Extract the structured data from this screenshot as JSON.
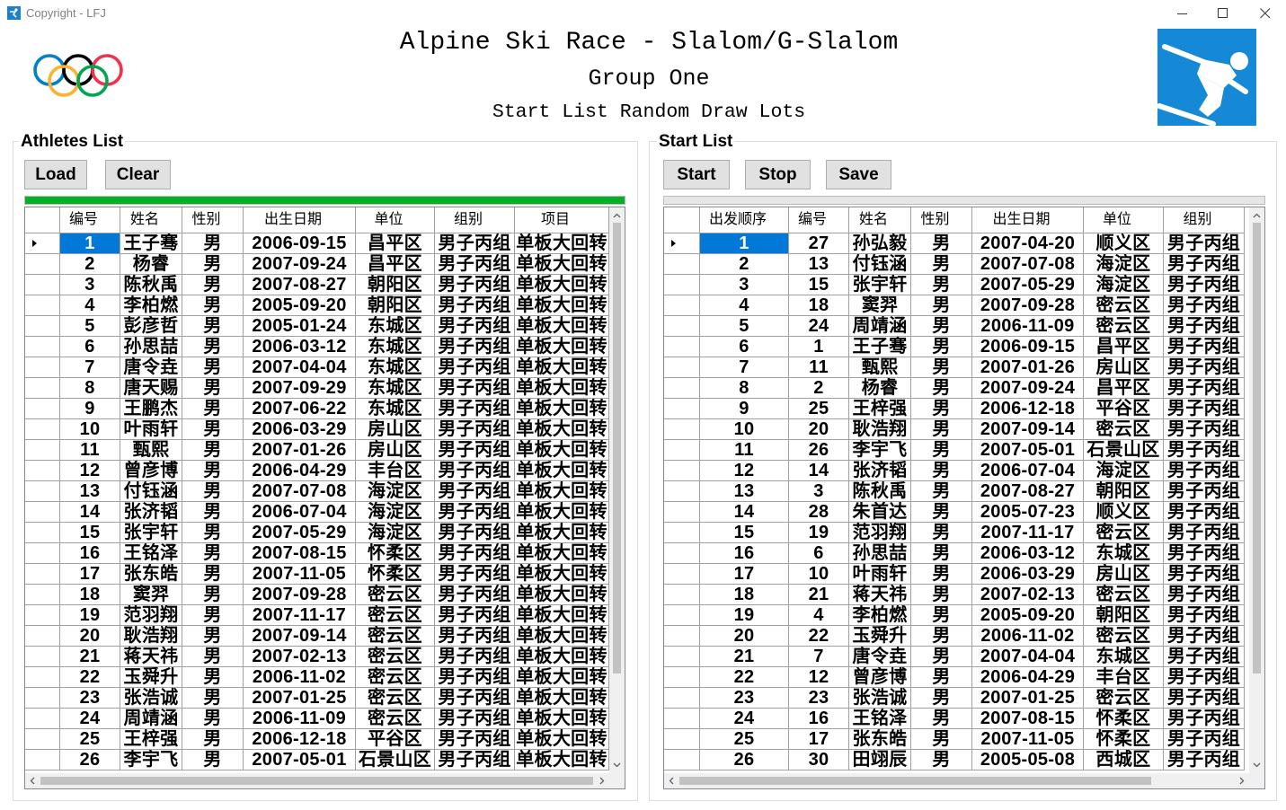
{
  "window": {
    "title": "Copyright - LFJ",
    "icons": [
      "app-icon",
      "minimize-icon",
      "maximize-icon",
      "close-icon"
    ]
  },
  "header": {
    "title": "Alpine Ski Race - Slalom/G-Slalom",
    "subtitle": "Group One",
    "caption": "Start List Random Draw Lots",
    "left_logo": "olympic-rings-logo",
    "right_logo": "alpine-skiing-icon"
  },
  "athletes": {
    "label": "Athletes List",
    "buttons": {
      "load": "Load",
      "clear": "Clear"
    },
    "progress": 1.0,
    "selected": {
      "row": 0,
      "column": 0
    },
    "columns": [
      "编号",
      "姓名",
      "性别",
      "出生日期",
      "单位",
      "组别",
      "项目"
    ],
    "rows": [
      [
        "1",
        "王子骞",
        "男",
        "2006-09-15",
        "昌平区",
        "男子丙组",
        "单板大回转"
      ],
      [
        "2",
        "杨睿",
        "男",
        "2007-09-24",
        "昌平区",
        "男子丙组",
        "单板大回转"
      ],
      [
        "3",
        "陈秋禹",
        "男",
        "2007-08-27",
        "朝阳区",
        "男子丙组",
        "单板大回转"
      ],
      [
        "4",
        "李柏燃",
        "男",
        "2005-09-20",
        "朝阳区",
        "男子丙组",
        "单板大回转"
      ],
      [
        "5",
        "彭彦哲",
        "男",
        "2005-01-24",
        "东城区",
        "男子丙组",
        "单板大回转"
      ],
      [
        "6",
        "孙思喆",
        "男",
        "2006-03-12",
        "东城区",
        "男子丙组",
        "单板大回转"
      ],
      [
        "7",
        "唐令垚",
        "男",
        "2007-04-04",
        "东城区",
        "男子丙组",
        "单板大回转"
      ],
      [
        "8",
        "唐天赐",
        "男",
        "2007-09-29",
        "东城区",
        "男子丙组",
        "单板大回转"
      ],
      [
        "9",
        "王鹏杰",
        "男",
        "2007-06-22",
        "东城区",
        "男子丙组",
        "单板大回转"
      ],
      [
        "10",
        "叶雨轩",
        "男",
        "2006-03-29",
        "房山区",
        "男子丙组",
        "单板大回转"
      ],
      [
        "11",
        "甄熙",
        "男",
        "2007-01-26",
        "房山区",
        "男子丙组",
        "单板大回转"
      ],
      [
        "12",
        "曾彦博",
        "男",
        "2006-04-29",
        "丰台区",
        "男子丙组",
        "单板大回转"
      ],
      [
        "13",
        "付钰涵",
        "男",
        "2007-07-08",
        "海淀区",
        "男子丙组",
        "单板大回转"
      ],
      [
        "14",
        "张济韬",
        "男",
        "2006-07-04",
        "海淀区",
        "男子丙组",
        "单板大回转"
      ],
      [
        "15",
        "张宇轩",
        "男",
        "2007-05-29",
        "海淀区",
        "男子丙组",
        "单板大回转"
      ],
      [
        "16",
        "王铭泽",
        "男",
        "2007-08-15",
        "怀柔区",
        "男子丙组",
        "单板大回转"
      ],
      [
        "17",
        "张东皓",
        "男",
        "2007-11-05",
        "怀柔区",
        "男子丙组",
        "单板大回转"
      ],
      [
        "18",
        "窦羿",
        "男",
        "2007-09-28",
        "密云区",
        "男子丙组",
        "单板大回转"
      ],
      [
        "19",
        "范羽翔",
        "男",
        "2007-11-17",
        "密云区",
        "男子丙组",
        "单板大回转"
      ],
      [
        "20",
        "耿浩翔",
        "男",
        "2007-09-14",
        "密云区",
        "男子丙组",
        "单板大回转"
      ],
      [
        "21",
        "蒋天祎",
        "男",
        "2007-02-13",
        "密云区",
        "男子丙组",
        "单板大回转"
      ],
      [
        "22",
        "玉舜升",
        "男",
        "2006-11-02",
        "密云区",
        "男子丙组",
        "单板大回转"
      ],
      [
        "23",
        "张浩诚",
        "男",
        "2007-01-25",
        "密云区",
        "男子丙组",
        "单板大回转"
      ],
      [
        "24",
        "周靖涵",
        "男",
        "2006-11-09",
        "密云区",
        "男子丙组",
        "单板大回转"
      ],
      [
        "25",
        "王梓强",
        "男",
        "2006-12-18",
        "平谷区",
        "男子丙组",
        "单板大回转"
      ],
      [
        "26",
        "李宇飞",
        "男",
        "2007-05-01",
        "石景山区",
        "男子丙组",
        "单板大回转"
      ]
    ]
  },
  "start_list": {
    "label": "Start List",
    "buttons": {
      "start": "Start",
      "stop": "Stop",
      "save": "Save"
    },
    "progress": 0,
    "selected": {
      "row": 0,
      "column": 0
    },
    "columns": [
      "出发顺序",
      "编号",
      "姓名",
      "性别",
      "出生日期",
      "单位",
      "组别"
    ],
    "rows": [
      [
        "1",
        "27",
        "孙弘毅",
        "男",
        "2007-04-20",
        "顺义区",
        "男子丙组"
      ],
      [
        "2",
        "13",
        "付钰涵",
        "男",
        "2007-07-08",
        "海淀区",
        "男子丙组"
      ],
      [
        "3",
        "15",
        "张宇轩",
        "男",
        "2007-05-29",
        "海淀区",
        "男子丙组"
      ],
      [
        "4",
        "18",
        "窦羿",
        "男",
        "2007-09-28",
        "密云区",
        "男子丙组"
      ],
      [
        "5",
        "24",
        "周靖涵",
        "男",
        "2006-11-09",
        "密云区",
        "男子丙组"
      ],
      [
        "6",
        "1",
        "王子骞",
        "男",
        "2006-09-15",
        "昌平区",
        "男子丙组"
      ],
      [
        "7",
        "11",
        "甄熙",
        "男",
        "2007-01-26",
        "房山区",
        "男子丙组"
      ],
      [
        "8",
        "2",
        "杨睿",
        "男",
        "2007-09-24",
        "昌平区",
        "男子丙组"
      ],
      [
        "9",
        "25",
        "王梓强",
        "男",
        "2006-12-18",
        "平谷区",
        "男子丙组"
      ],
      [
        "10",
        "20",
        "耿浩翔",
        "男",
        "2007-09-14",
        "密云区",
        "男子丙组"
      ],
      [
        "11",
        "26",
        "李宇飞",
        "男",
        "2007-05-01",
        "石景山区",
        "男子丙组"
      ],
      [
        "12",
        "14",
        "张济韬",
        "男",
        "2006-07-04",
        "海淀区",
        "男子丙组"
      ],
      [
        "13",
        "3",
        "陈秋禹",
        "男",
        "2007-08-27",
        "朝阳区",
        "男子丙组"
      ],
      [
        "14",
        "28",
        "朱首达",
        "男",
        "2005-07-23",
        "顺义区",
        "男子丙组"
      ],
      [
        "15",
        "19",
        "范羽翔",
        "男",
        "2007-11-17",
        "密云区",
        "男子丙组"
      ],
      [
        "16",
        "6",
        "孙思喆",
        "男",
        "2006-03-12",
        "东城区",
        "男子丙组"
      ],
      [
        "17",
        "10",
        "叶雨轩",
        "男",
        "2006-03-29",
        "房山区",
        "男子丙组"
      ],
      [
        "18",
        "21",
        "蒋天祎",
        "男",
        "2007-02-13",
        "密云区",
        "男子丙组"
      ],
      [
        "19",
        "4",
        "李柏燃",
        "男",
        "2005-09-20",
        "朝阳区",
        "男子丙组"
      ],
      [
        "20",
        "22",
        "玉舜升",
        "男",
        "2006-11-02",
        "密云区",
        "男子丙组"
      ],
      [
        "21",
        "7",
        "唐令垚",
        "男",
        "2007-04-04",
        "东城区",
        "男子丙组"
      ],
      [
        "22",
        "12",
        "曾彦博",
        "男",
        "2006-04-29",
        "丰台区",
        "男子丙组"
      ],
      [
        "23",
        "23",
        "张浩诚",
        "男",
        "2007-01-25",
        "密云区",
        "男子丙组"
      ],
      [
        "24",
        "16",
        "王铭泽",
        "男",
        "2007-08-15",
        "怀柔区",
        "男子丙组"
      ],
      [
        "25",
        "17",
        "张东皓",
        "男",
        "2007-11-05",
        "怀柔区",
        "男子丙组"
      ],
      [
        "26",
        "30",
        "田翊辰",
        "男",
        "2005-05-08",
        "西城区",
        "男子丙组"
      ]
    ]
  },
  "colors": {
    "progress_fill": "#06b025",
    "selection": "#0078d7",
    "ski_icon_bg": "#1589d6",
    "rings": {
      "blue": "#0081c8",
      "black": "#000000",
      "red": "#ee334e",
      "yellow": "#fcb131",
      "green": "#00a651"
    }
  }
}
